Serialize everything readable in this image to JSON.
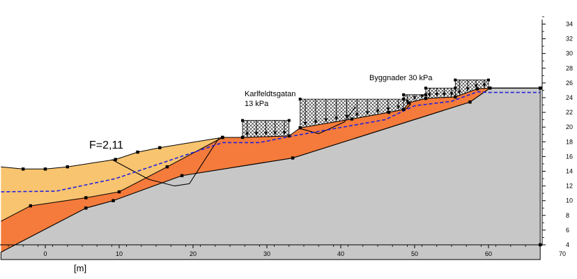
{
  "factor_of_safety": "F=2,11",
  "loads": {
    "street_name": "Karlfeldtsgatan",
    "street_load": "13 kPa",
    "buildings_label": "Byggnader 30 kPa"
  },
  "x_axis": {
    "unit_label": "[m]",
    "ticks": [
      "0",
      "10",
      "20",
      "30",
      "40",
      "50",
      "60",
      "70"
    ]
  },
  "y_axis": {
    "ticks": [
      "4",
      "6",
      "8",
      "10",
      "12",
      "14",
      "16",
      "18",
      "20",
      "22",
      "24",
      "26",
      "28",
      "30",
      "32",
      "34"
    ]
  },
  "colors": {
    "upper_soil": "#f9c46f",
    "lower_soil": "#f47b3b",
    "bedrock": "#c7c7c7",
    "groundwater": "#2020dd",
    "boundary": "#000000",
    "load_hatch": "#000000"
  },
  "chart_data": {
    "type": "diagram",
    "x_unit": "m",
    "x_range": [
      -6,
      70
    ],
    "y_range": [
      4,
      35
    ],
    "surface": [
      [
        -6,
        14.6
      ],
      [
        -3,
        14.3
      ],
      [
        0,
        14.3
      ],
      [
        3,
        14.6
      ],
      [
        9.5,
        15.6
      ],
      [
        12.5,
        16.6
      ],
      [
        15.5,
        17.2
      ],
      [
        24,
        18.6
      ],
      [
        26.7,
        18.6
      ],
      [
        33,
        18.8
      ],
      [
        34.5,
        19.9
      ],
      [
        41.5,
        21.1
      ],
      [
        46.5,
        22.0
      ],
      [
        48.5,
        22.4
      ],
      [
        49.2,
        23.3
      ],
      [
        51.5,
        23.9
      ],
      [
        55.5,
        24.1
      ],
      [
        58.5,
        25.2
      ],
      [
        60.2,
        25.3
      ],
      [
        67,
        25.3
      ]
    ],
    "soil_interface": [
      [
        -6,
        7.2
      ],
      [
        -2,
        9.3
      ],
      [
        5.5,
        10.4
      ],
      [
        10,
        11.2
      ],
      [
        16.5,
        14.6
      ],
      [
        24,
        18.6
      ]
    ],
    "bedrock_surface": [
      [
        -6,
        3.0
      ],
      [
        5.5,
        9.0
      ],
      [
        9.2,
        10.0
      ],
      [
        18.5,
        13.4
      ],
      [
        33.5,
        15.8
      ],
      [
        57.5,
        23.4
      ],
      [
        60.2,
        25.3
      ],
      [
        67,
        25.3
      ]
    ],
    "groundwater": [
      [
        -6,
        11.2
      ],
      [
        1.5,
        11.3
      ],
      [
        9.5,
        13.0
      ],
      [
        24,
        17.9
      ],
      [
        29,
        17.9
      ],
      [
        33,
        18.7
      ],
      [
        46,
        21.0
      ],
      [
        50,
        22.9
      ],
      [
        55,
        23.5
      ],
      [
        58.5,
        24.8
      ],
      [
        60,
        24.7
      ],
      [
        67,
        24.7
      ]
    ],
    "slip_surfaces": [
      {
        "points": [
          [
            9,
            15.6
          ],
          [
            14,
            12.9
          ],
          [
            17.5,
            12.0
          ],
          [
            19.5,
            12.3
          ],
          [
            23.5,
            18.5
          ]
        ]
      },
      {
        "points": [
          [
            34.5,
            19.8
          ],
          [
            37,
            19.1
          ],
          [
            40.5,
            20.7
          ],
          [
            42,
            22.8
          ]
        ]
      },
      {
        "points": [
          [
            48.3,
            22.6
          ],
          [
            48.5,
            22.3
          ],
          [
            49,
            22.6
          ],
          [
            49.5,
            23.2
          ]
        ]
      }
    ],
    "load_areas": [
      {
        "label": "Karlfeldtsgatan 13 kPa",
        "x": [
          26.7,
          33
        ],
        "top": 20.9
      },
      {
        "label": "Byggnader 30 kPa",
        "x": [
          34.5,
          48.5
        ],
        "top": 23.8
      },
      {
        "label": "Byggnader 30 kPa",
        "x": [
          48.5,
          51.5
        ],
        "top": 24.4
      },
      {
        "label": "Byggnader 30 kPa",
        "x": [
          51.5,
          55.5
        ],
        "top": 25.3
      },
      {
        "label": "Byggnader 30 kPa",
        "x": [
          55.5,
          60
        ],
        "top": 26.4
      }
    ]
  }
}
